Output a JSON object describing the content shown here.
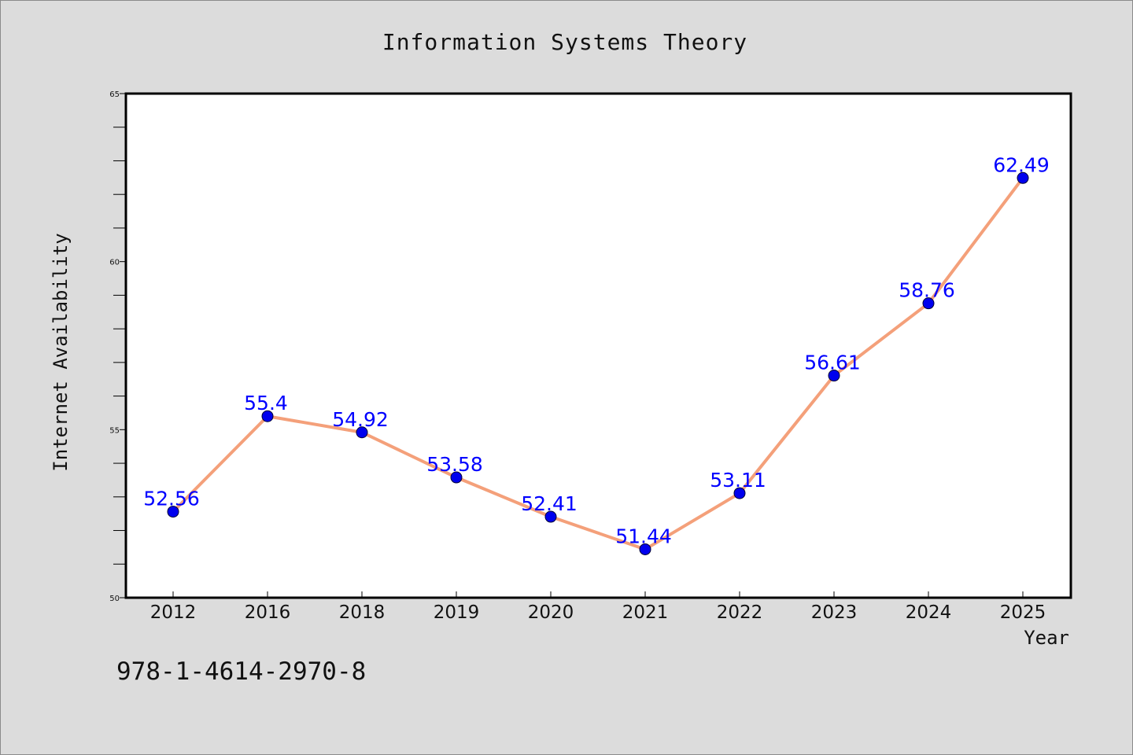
{
  "chart_data": {
    "type": "line",
    "title": "Information Systems Theory",
    "xlabel": "Year",
    "ylabel": "Internet Availability",
    "categories": [
      "2012",
      "2016",
      "2018",
      "2019",
      "2020",
      "2021",
      "2022",
      "2023",
      "2024",
      "2025"
    ],
    "series": [
      {
        "values": [
          52.56,
          55.4,
          54.92,
          53.58,
          52.41,
          51.44,
          53.11,
          56.61,
          58.76,
          62.49
        ],
        "labels": [
          "52.56",
          "55.4",
          "54.92",
          "53.58",
          "52.41",
          "51.44",
          "53.11",
          "56.61",
          "58.76",
          "62.49"
        ]
      }
    ],
    "ylim": [
      50,
      65
    ],
    "yticks": [
      "50",
      "55",
      "60",
      "65"
    ],
    "grid": false,
    "legend": "none",
    "colors": {
      "line": "#f4a07a",
      "marker": "#0000ee",
      "data_label": "#0000ff",
      "background": "#dcdcdc",
      "plot_background": "#ffffff"
    }
  },
  "footer": {
    "isbn": "978-1-4614-2970-8"
  }
}
